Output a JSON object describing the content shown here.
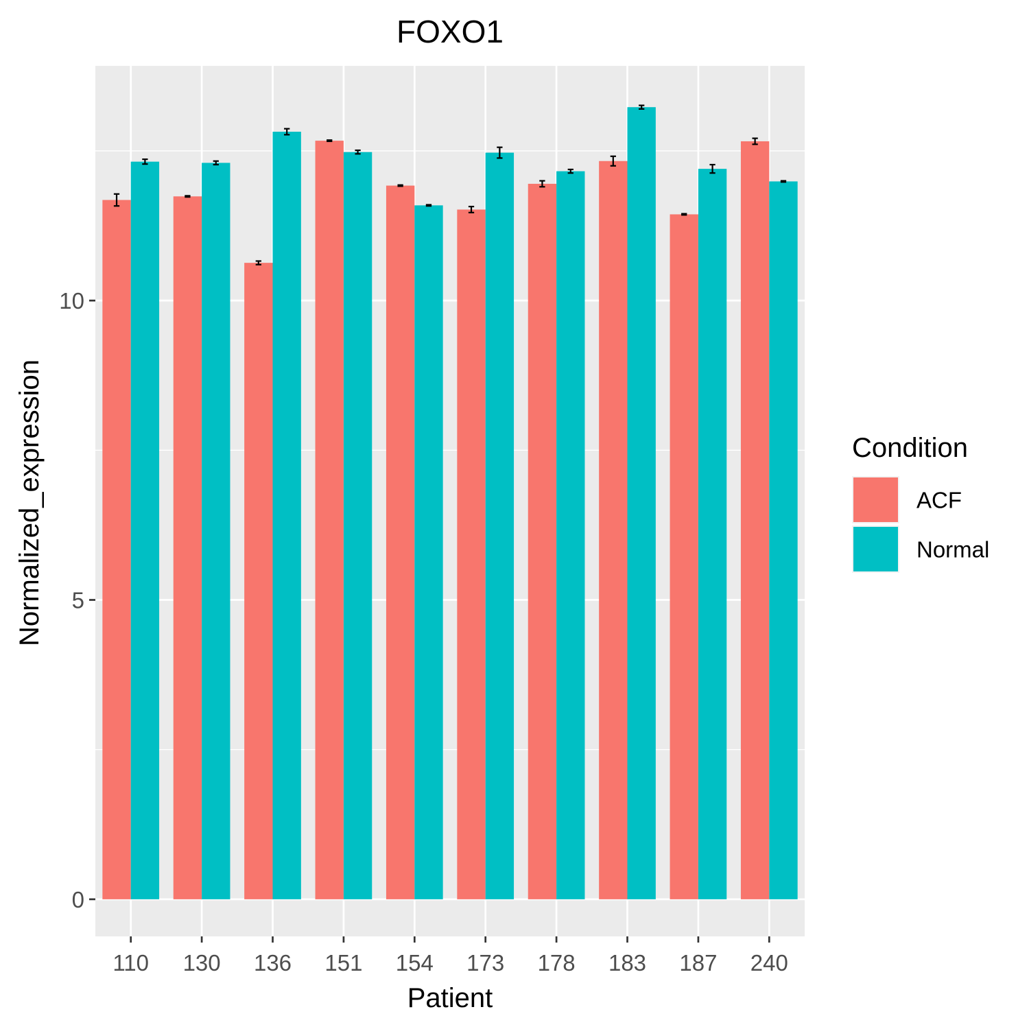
{
  "chart_data": {
    "type": "bar",
    "title": "FOXO1",
    "xlabel": "Patient",
    "ylabel": "Normalized_expression",
    "categories": [
      "110",
      "130",
      "136",
      "151",
      "154",
      "173",
      "178",
      "183",
      "187",
      "240"
    ],
    "series": [
      {
        "name": "ACF",
        "color": "#F8766D",
        "values": [
          11.68,
          11.74,
          10.63,
          12.67,
          11.92,
          11.52,
          11.95,
          12.33,
          11.44,
          12.66
        ],
        "errors": [
          0.1,
          0.01,
          0.03,
          0.01,
          0.01,
          0.05,
          0.05,
          0.08,
          0.01,
          0.05
        ]
      },
      {
        "name": "Normal",
        "color": "#00BFC4",
        "values": [
          12.32,
          12.3,
          12.82,
          12.48,
          11.59,
          12.47,
          12.16,
          13.23,
          12.2,
          11.99
        ],
        "errors": [
          0.04,
          0.03,
          0.05,
          0.03,
          0.01,
          0.09,
          0.03,
          0.03,
          0.07,
          0.01
        ]
      }
    ],
    "yticks": [
      0,
      5,
      10
    ],
    "ylim": [
      -0.62,
      13.92
    ],
    "legend": {
      "title": "Condition",
      "placement": "right"
    },
    "grid": true,
    "panel_background": "#EBEBEB",
    "gridline_color": "#FFFFFF"
  }
}
